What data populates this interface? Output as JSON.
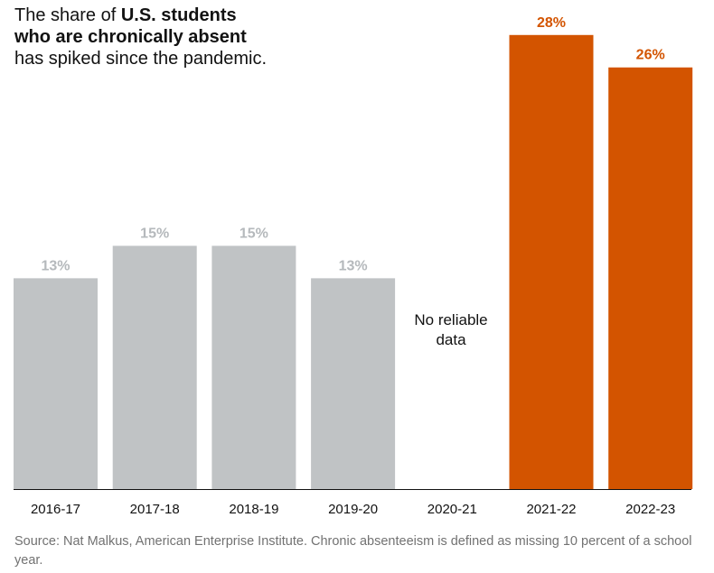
{
  "title": {
    "part1": "The share of ",
    "bold": "U.S. students who are chronically absent",
    "part2": " has spiked since the pandemic."
  },
  "chart_data": {
    "type": "bar",
    "categories": [
      "2016-17",
      "2017-18",
      "2018-19",
      "2019-20",
      "2020-21",
      "2021-22",
      "2022-23"
    ],
    "values": [
      13,
      15,
      15,
      13,
      null,
      28,
      26
    ],
    "data_labels": [
      "13%",
      "15%",
      "15%",
      "13%",
      "",
      "28%",
      "26%"
    ],
    "ylim": [
      0,
      28.6
    ],
    "xlabel": "",
    "ylabel": "",
    "grid": false,
    "colors": {
      "pre_pandemic": "#c0c3c5",
      "post_pandemic": "#d35400",
      "label_pre": "#b5b9bc",
      "label_post": "#d35400",
      "axis": "#121212"
    },
    "highlight_from_index": 5,
    "no_data_index": 4,
    "no_data_label": "No reliable data"
  },
  "source": "Source: Nat Malkus, American Enterprise Institute. Chronic absenteeism is defined as missing 10 percent of a school year."
}
